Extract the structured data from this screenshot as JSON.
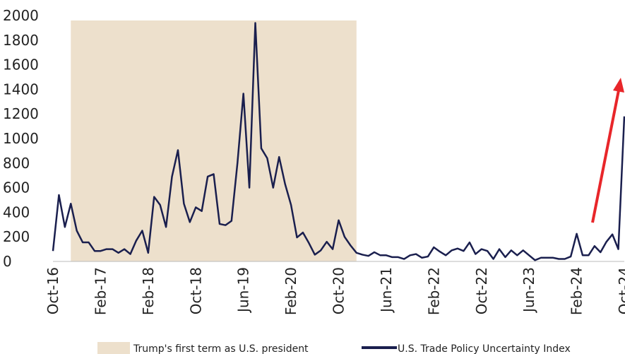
{
  "chart_data": {
    "type": "line",
    "categories": [
      "Oct-16",
      null,
      null,
      null,
      null,
      null,
      null,
      null,
      "Feb-17",
      null,
      null,
      null,
      null,
      null,
      null,
      null,
      "Feb-18",
      null,
      null,
      null,
      null,
      null,
      null,
      null,
      "Oct-18",
      null,
      null,
      null,
      null,
      null,
      null,
      null,
      "Jun-19",
      null,
      null,
      null,
      null,
      null,
      null,
      null,
      "Feb-20",
      null,
      null,
      null,
      null,
      null,
      null,
      null,
      "Oct-20",
      null,
      null,
      null,
      null,
      null,
      null,
      null,
      "Jun-21",
      null,
      null,
      null,
      null,
      null,
      null,
      null,
      "Feb-22",
      null,
      null,
      null,
      null,
      null,
      null,
      null,
      "Oct-22",
      null,
      null,
      null,
      null,
      null,
      null,
      null,
      "Jun-23",
      null,
      null,
      null,
      null,
      null,
      null,
      null,
      "Feb-24",
      null,
      null,
      null,
      null,
      null,
      null,
      null,
      "Oct-24"
    ],
    "series": [
      {
        "name": "U.S. Trade Policy Uncertainty Index",
        "color": "#1a1f4e",
        "values": [
          85,
          540,
          280,
          470,
          250,
          155,
          155,
          85,
          85,
          100,
          100,
          70,
          100,
          60,
          170,
          250,
          70,
          525,
          460,
          280,
          690,
          905,
          470,
          320,
          440,
          410,
          690,
          710,
          305,
          295,
          330,
          800,
          1365,
          600,
          1940,
          920,
          840,
          600,
          850,
          630,
          460,
          195,
          235,
          150,
          55,
          90,
          160,
          100,
          335,
          200,
          130,
          70,
          55,
          45,
          75,
          50,
          50,
          35,
          35,
          20,
          50,
          60,
          30,
          40,
          115,
          80,
          50,
          90,
          105,
          85,
          155,
          60,
          100,
          85,
          20,
          100,
          35,
          90,
          50,
          90,
          50,
          10,
          30,
          30,
          30,
          20,
          20,
          40,
          225,
          50,
          50,
          125,
          75,
          160,
          220,
          100,
          1180
        ]
      }
    ],
    "shade": {
      "name": "Trump's first term as U.S. president",
      "from_index": 3,
      "to_index": 51,
      "top": 1960,
      "color": "#ede0cc"
    },
    "ylim": [
      0,
      2000
    ],
    "yticks": [
      0,
      200,
      400,
      600,
      800,
      1000,
      1200,
      1400,
      1600,
      1800,
      2000
    ],
    "grid": false
  }
}
